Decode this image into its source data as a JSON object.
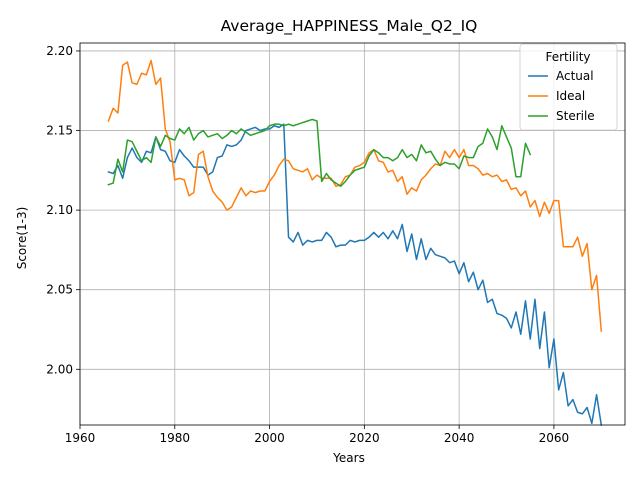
{
  "chart_data": {
    "type": "line",
    "title": "Average_HAPPINESS_Male_Q2_IQ",
    "xlabel": "Years",
    "ylabel": "Score(1-3)",
    "xlim": [
      1960,
      2075
    ],
    "ylim": [
      1.965,
      2.205
    ],
    "xticks": [
      1960,
      1980,
      2000,
      2020,
      2040,
      2060
    ],
    "xtick_labels": [
      "1960",
      "1980",
      "2000",
      "2020",
      "2040",
      "2060"
    ],
    "yticks": [
      2.0,
      2.05,
      2.1,
      2.15,
      2.2
    ],
    "ytick_labels": [
      "2.00",
      "2.05",
      "2.10",
      "2.15",
      "2.20"
    ],
    "grid": true,
    "legend": {
      "title": "Fertility",
      "placement": "top-right"
    },
    "series": [
      {
        "name": "Actual",
        "color": "#1f77b4",
        "x": [
          1966,
          1967,
          1968,
          1969,
          1970,
          1971,
          1972,
          1973,
          1974,
          1975,
          1976,
          1977,
          1978,
          1979,
          1980,
          1981,
          1982,
          1983,
          1984,
          1985,
          1986,
          1987,
          1988,
          1989,
          1990,
          1991,
          1992,
          1993,
          1994,
          1995,
          1996,
          1997,
          1998,
          1999,
          2000,
          2001,
          2002,
          2003,
          2004,
          2005,
          2006,
          2007,
          2008,
          2009,
          2010,
          2011,
          2012,
          2013,
          2014,
          2015,
          2016,
          2017,
          2018,
          2019,
          2020,
          2021,
          2022,
          2023,
          2024,
          2025,
          2026,
          2027,
          2028,
          2029,
          2030,
          2031,
          2032,
          2033,
          2034,
          2035,
          2036,
          2037,
          2038,
          2039,
          2040,
          2041,
          2042,
          2043,
          2044,
          2045,
          2046,
          2047,
          2048,
          2049,
          2050,
          2051,
          2052,
          2053,
          2054,
          2055,
          2056,
          2057,
          2058,
          2059,
          2060,
          2061,
          2062,
          2063,
          2064,
          2065,
          2066,
          2067,
          2068,
          2069,
          2070
        ],
        "values": [
          2.124,
          2.123,
          2.128,
          2.12,
          2.133,
          2.139,
          2.133,
          2.13,
          2.137,
          2.136,
          2.146,
          2.138,
          2.137,
          2.131,
          2.13,
          2.138,
          2.134,
          2.131,
          2.127,
          2.127,
          2.127,
          2.122,
          2.124,
          2.133,
          2.134,
          2.141,
          2.14,
          2.141,
          2.144,
          2.15,
          2.151,
          2.152,
          2.15,
          2.151,
          2.151,
          2.153,
          2.152,
          2.154,
          2.083,
          2.08,
          2.086,
          2.078,
          2.081,
          2.08,
          2.081,
          2.081,
          2.086,
          2.083,
          2.077,
          2.078,
          2.078,
          2.081,
          2.08,
          2.081,
          2.081,
          2.083,
          2.086,
          2.083,
          2.086,
          2.082,
          2.087,
          2.082,
          2.091,
          2.074,
          2.085,
          2.069,
          2.082,
          2.069,
          2.076,
          2.072,
          2.071,
          2.07,
          2.067,
          2.068,
          2.06,
          2.067,
          2.055,
          2.061,
          2.05,
          2.056,
          2.042,
          2.044,
          2.035,
          2.034,
          2.032,
          2.026,
          2.036,
          2.022,
          2.043,
          2.019,
          2.044,
          2.013,
          2.036,
          2.001,
          2.019,
          1.987,
          1.998,
          1.977,
          1.981,
          1.973,
          1.972,
          1.976,
          1.966,
          1.984,
          1.965
        ]
      },
      {
        "name": "Ideal",
        "color": "#ff7f0e",
        "x": [
          1966,
          1967,
          1968,
          1969,
          1970,
          1971,
          1972,
          1973,
          1974,
          1975,
          1976,
          1977,
          1978,
          1979,
          1980,
          1981,
          1982,
          1983,
          1984,
          1985,
          1986,
          1987,
          1988,
          1989,
          1990,
          1991,
          1992,
          1993,
          1994,
          1995,
          1996,
          1997,
          1998,
          1999,
          2000,
          2001,
          2002,
          2003,
          2004,
          2005,
          2006,
          2007,
          2008,
          2009,
          2010,
          2011,
          2012,
          2013,
          2014,
          2015,
          2016,
          2017,
          2018,
          2019,
          2020,
          2021,
          2022,
          2023,
          2024,
          2025,
          2026,
          2027,
          2028,
          2029,
          2030,
          2031,
          2032,
          2033,
          2034,
          2035,
          2036,
          2037,
          2038,
          2039,
          2040,
          2041,
          2042,
          2043,
          2044,
          2045,
          2046,
          2047,
          2048,
          2049,
          2050,
          2051,
          2052,
          2053,
          2054,
          2055,
          2056,
          2057,
          2058,
          2059,
          2060,
          2061,
          2062,
          2063,
          2064,
          2065,
          2066,
          2067,
          2068,
          2069,
          2070
        ],
        "values": [
          2.156,
          2.164,
          2.161,
          2.191,
          2.193,
          2.18,
          2.179,
          2.186,
          2.185,
          2.194,
          2.179,
          2.183,
          2.151,
          2.143,
          2.119,
          2.12,
          2.119,
          2.109,
          2.111,
          2.135,
          2.137,
          2.121,
          2.112,
          2.108,
          2.105,
          2.1,
          2.102,
          2.108,
          2.114,
          2.109,
          2.112,
          2.111,
          2.112,
          2.112,
          2.118,
          2.122,
          2.128,
          2.132,
          2.131,
          2.126,
          2.125,
          2.124,
          2.126,
          2.119,
          2.122,
          2.12,
          2.12,
          2.12,
          2.115,
          2.116,
          2.121,
          2.122,
          2.127,
          2.128,
          2.13,
          2.136,
          2.138,
          2.131,
          2.13,
          2.124,
          2.125,
          2.118,
          2.121,
          2.11,
          2.114,
          2.112,
          2.119,
          2.122,
          2.126,
          2.129,
          2.128,
          2.137,
          2.133,
          2.138,
          2.133,
          2.138,
          2.128,
          2.128,
          2.126,
          2.122,
          2.123,
          2.121,
          2.122,
          2.118,
          2.119,
          2.113,
          2.114,
          2.109,
          2.112,
          2.102,
          2.106,
          2.096,
          2.105,
          2.098,
          2.106,
          2.106,
          2.077,
          2.077,
          2.077,
          2.083,
          2.071,
          2.079,
          2.05,
          2.059,
          2.024
        ]
      },
      {
        "name": "Sterile",
        "color": "#2ca02c",
        "x": [
          1966,
          1967,
          1968,
          1969,
          1970,
          1971,
          1972,
          1973,
          1974,
          1975,
          1976,
          1977,
          1978,
          1979,
          1980,
          1981,
          1982,
          1983,
          1984,
          1985,
          1986,
          1987,
          1988,
          1989,
          1990,
          1991,
          1992,
          1993,
          1994,
          1995,
          1996,
          1997,
          1998,
          1999,
          2000,
          2001,
          2002,
          2003,
          2004,
          2005,
          2006,
          2007,
          2008,
          2009,
          2010,
          2011,
          2012,
          2013,
          2014,
          2015,
          2016,
          2017,
          2018,
          2019,
          2020,
          2021,
          2022,
          2023,
          2024,
          2025,
          2026,
          2027,
          2028,
          2029,
          2030,
          2031,
          2032,
          2033,
          2034,
          2035,
          2036,
          2037,
          2038,
          2039,
          2040,
          2041,
          2042,
          2043,
          2044,
          2045,
          2046,
          2047,
          2048,
          2049,
          2050,
          2051,
          2052,
          2053,
          2054,
          2055
        ],
        "values": [
          2.116,
          2.117,
          2.132,
          2.124,
          2.144,
          2.143,
          2.137,
          2.131,
          2.133,
          2.13,
          2.146,
          2.14,
          2.147,
          2.145,
          2.144,
          2.151,
          2.148,
          2.152,
          2.144,
          2.148,
          2.15,
          2.146,
          2.147,
          2.148,
          2.145,
          2.147,
          2.15,
          2.148,
          2.151,
          2.149,
          2.147,
          2.148,
          2.149,
          2.15,
          2.153,
          2.154,
          2.154,
          2.153,
          2.154,
          2.153,
          2.154,
          2.155,
          2.156,
          2.157,
          2.156,
          2.118,
          2.123,
          2.119,
          2.117,
          2.115,
          2.118,
          2.122,
          2.125,
          2.126,
          2.127,
          2.134,
          2.138,
          2.136,
          2.133,
          2.133,
          2.131,
          2.133,
          2.138,
          2.133,
          2.135,
          2.131,
          2.141,
          2.136,
          2.137,
          2.132,
          2.128,
          2.13,
          2.129,
          2.129,
          2.126,
          2.134,
          2.133,
          2.133,
          2.14,
          2.142,
          2.151,
          2.146,
          2.138,
          2.153,
          2.146,
          2.139,
          2.121,
          2.121,
          2.142,
          2.135
        ]
      }
    ]
  }
}
